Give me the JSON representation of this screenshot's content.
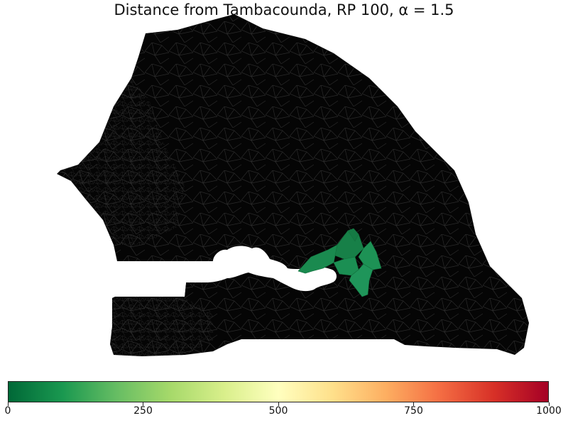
{
  "title": "Distance from Tambacounda, RP 100, α = 1.5",
  "map": {
    "region_name": "Senegal",
    "background_fill": "#050505",
    "cell_line_color": "#2a2a2a",
    "highlight_fill": "#1a8a4f",
    "gambia_fill": "#ffffff"
  },
  "chart_data": {
    "type": "heatmap",
    "colorbar": {
      "min": 0,
      "max": 1000,
      "ticks": [
        "0",
        "250",
        "500",
        "750",
        "1000"
      ],
      "colormap": [
        "#006837",
        "#1a9850",
        "#66bd63",
        "#a6d96a",
        "#d9ef8b",
        "#ffffbf",
        "#fee08b",
        "#fdae61",
        "#f46d43",
        "#d73027",
        "#a50026"
      ]
    }
  }
}
